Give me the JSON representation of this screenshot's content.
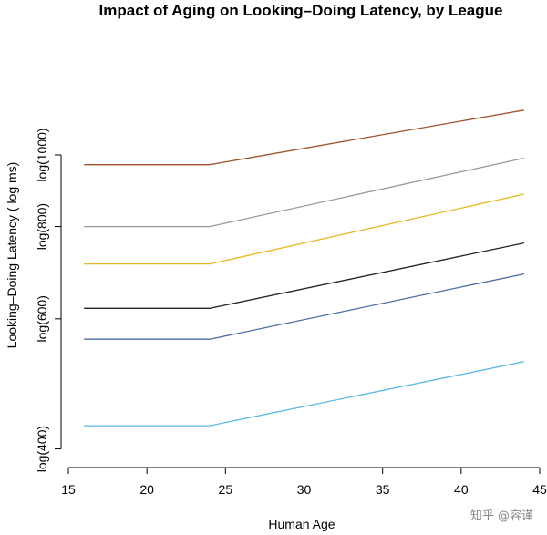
{
  "chart_data": {
    "type": "line",
    "title": "Impact of Aging on Looking–Doing Latency, by League",
    "xlabel": "Human Age",
    "ylabel": "Looking–Doing Latency ( log ms)",
    "xlim": [
      15,
      45
    ],
    "x_ticks": [
      15,
      20,
      25,
      30,
      35,
      40,
      45
    ],
    "y_scale": "log",
    "ylim": [
      395,
      1000
    ],
    "y_ticks": [
      {
        "value": 400,
        "label": "log(400)"
      },
      {
        "value": 600,
        "label": "log(600)"
      },
      {
        "value": 800,
        "label": "log(800)"
      },
      {
        "value": 1000,
        "label": "log(1000)"
      }
    ],
    "grid": false,
    "x": [
      16,
      24,
      44
    ],
    "series": [
      {
        "color": "#a0522d",
        "values": [
          970,
          970,
          1150
        ]
      },
      {
        "color": "#999999",
        "values": [
          800,
          800,
          990
        ]
      },
      {
        "color": "#e8b923",
        "values": [
          712,
          712,
          885
        ]
      },
      {
        "color": "#222222",
        "values": [
          620,
          620,
          760
        ]
      },
      {
        "color": "#4a6aa5",
        "values": [
          563,
          563,
          690
        ]
      },
      {
        "color": "#5bb8e0",
        "values": [
          430,
          430,
          525
        ]
      }
    ]
  },
  "watermark": "知乎 @容谨"
}
